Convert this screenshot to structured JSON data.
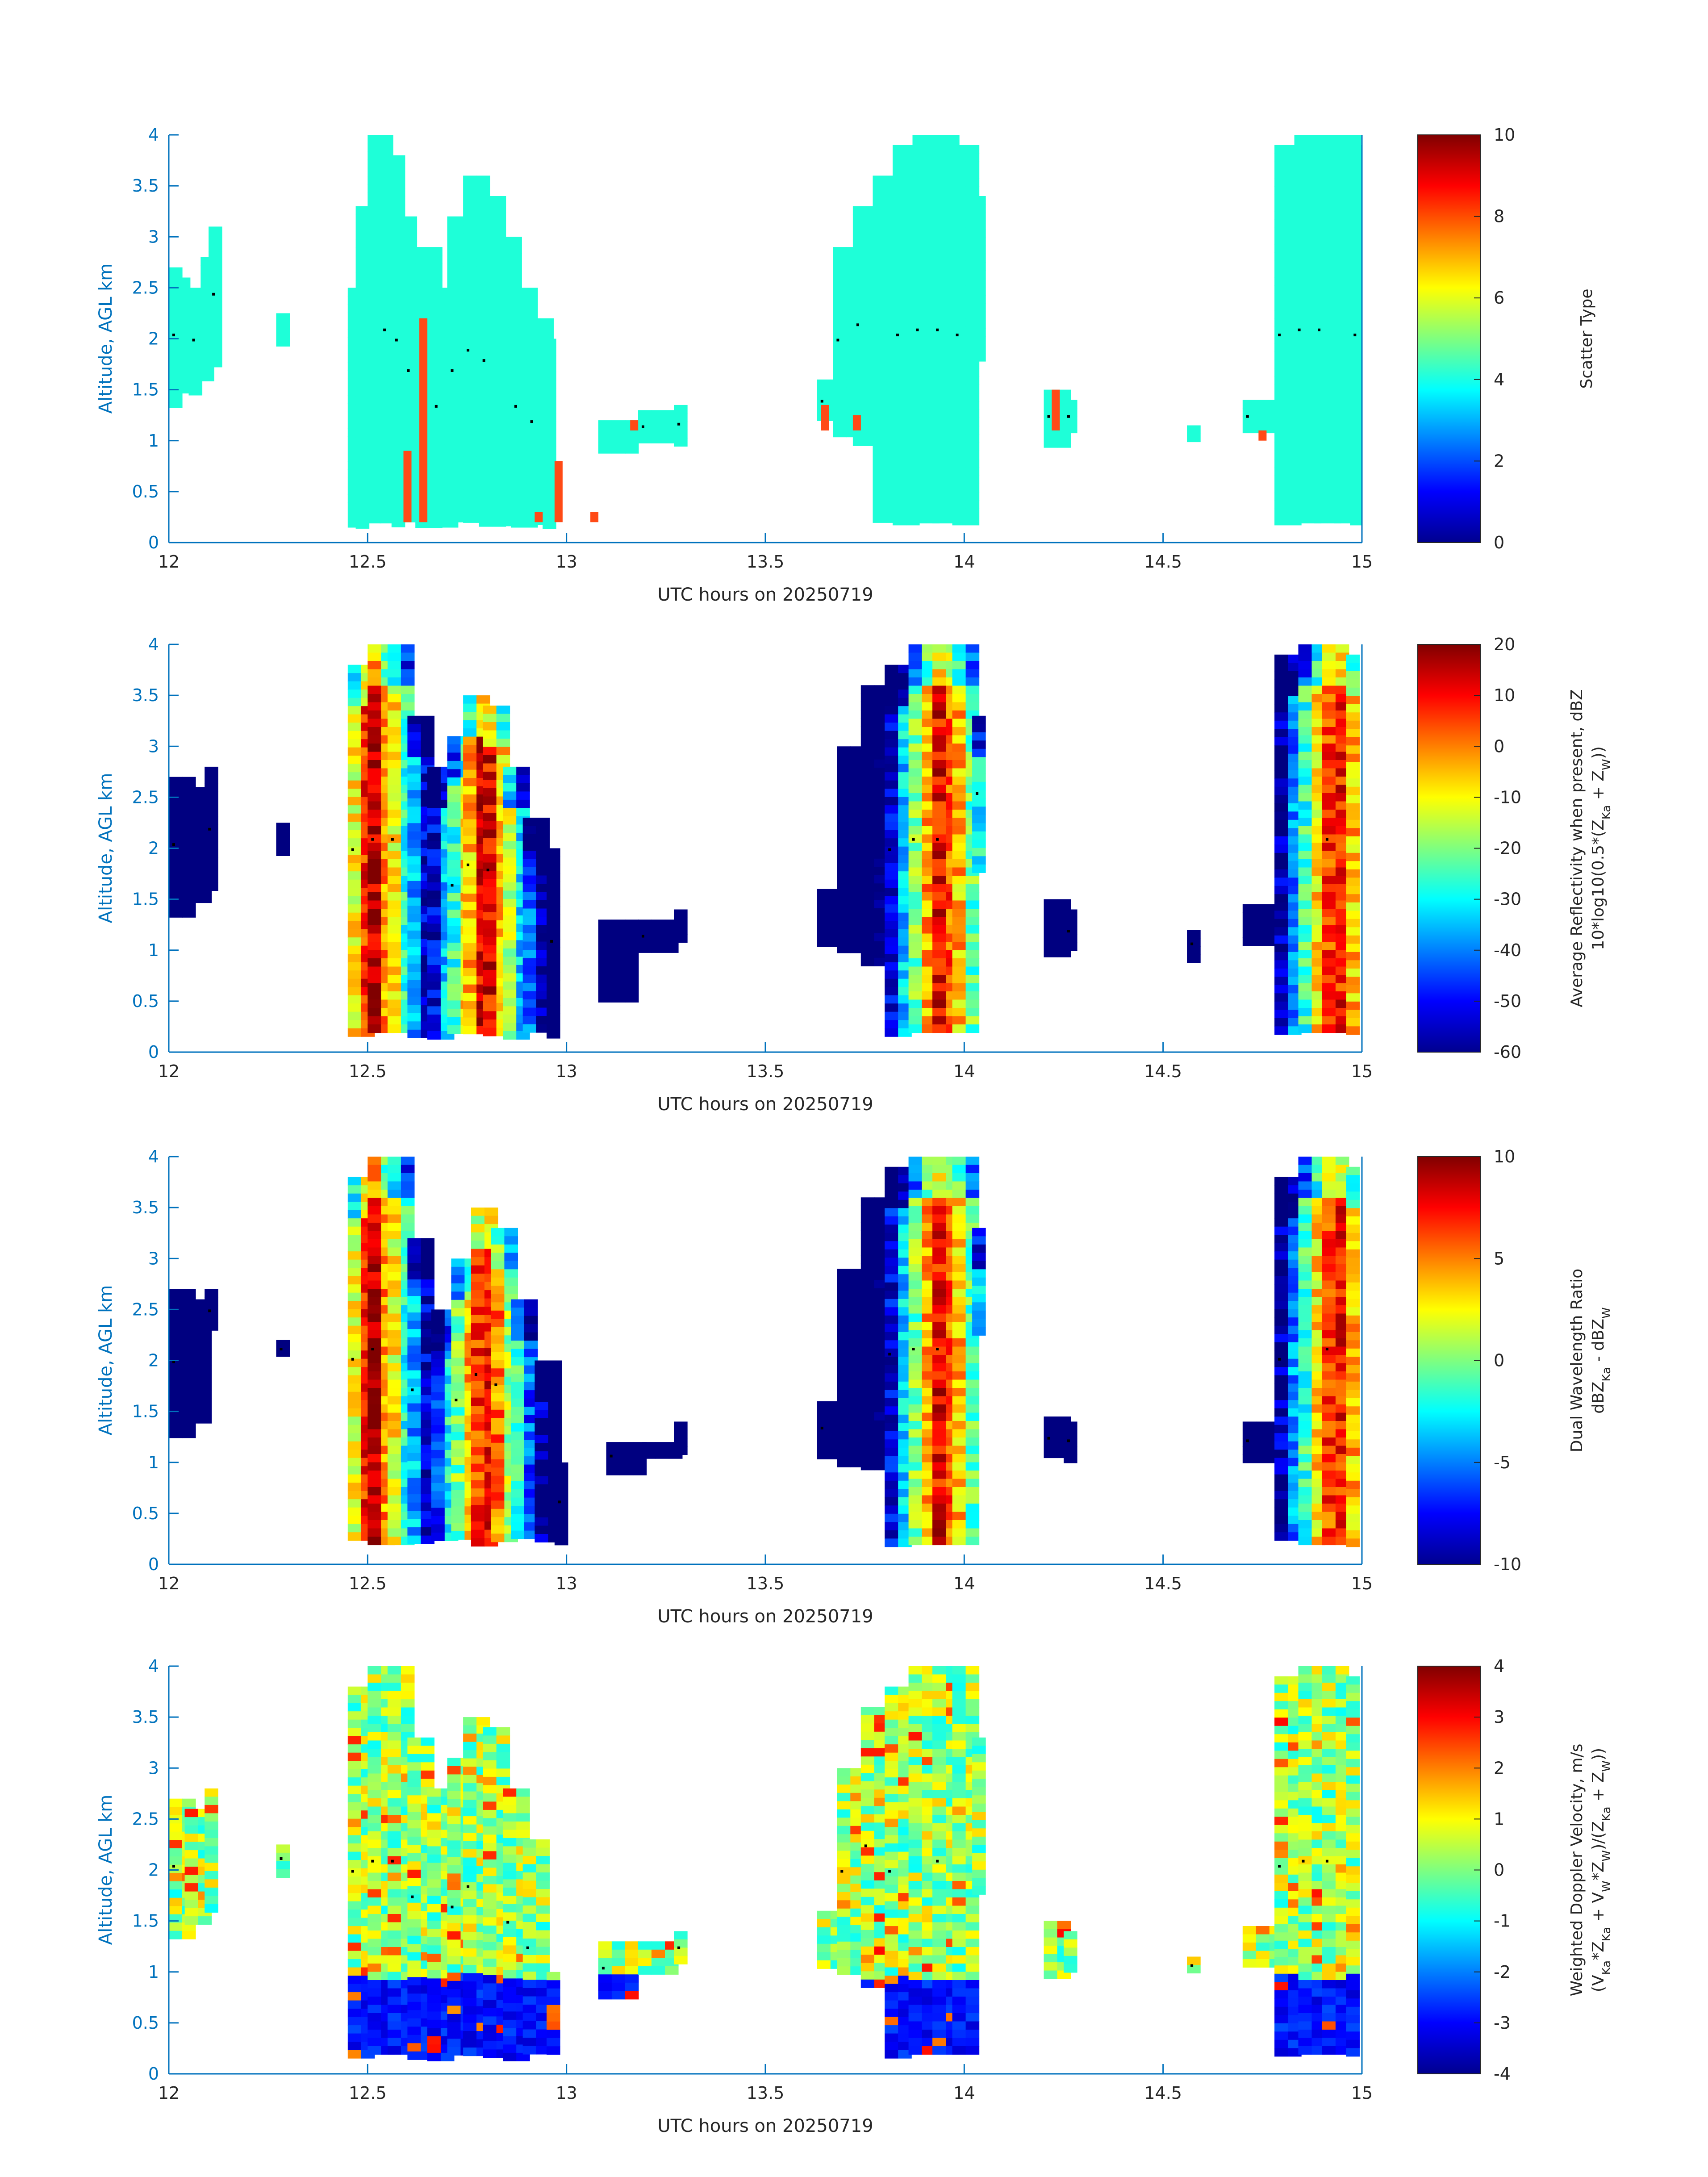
{
  "figure": {
    "colors": {
      "axis_blue": "#0072BD",
      "text": "#262626",
      "scatter_fill": "#1EFFD8",
      "scatter_accent": "#FF4A16",
      "dot": "#000000"
    }
  },
  "chart_data": [
    {
      "type": "heatmap",
      "xlabel": "UTC hours on 20250719",
      "ylabel": "Altitude, AGL km",
      "xlim": [
        12,
        15
      ],
      "ylim": [
        0,
        4
      ],
      "x_ticks": [
        "12",
        "12.5",
        "13",
        "13.5",
        "14",
        "14.5",
        "15"
      ],
      "y_ticks": [
        "0",
        "0.5",
        "1",
        "1.5",
        "2",
        "2.5",
        "3",
        "3.5",
        "4"
      ],
      "colorbar": {
        "title_lines": [
          "Scatter Type"
        ],
        "min": 0,
        "max": 10,
        "ticks": [
          "0",
          "2",
          "4",
          "6",
          "8",
          "10"
        ]
      },
      "mode": "scatter",
      "echoes": [
        {
          "t": 12.0,
          "b": 1.4,
          "h": 2.7
        },
        {
          "t": 12.02,
          "b": 1.5,
          "h": 2.6
        },
        {
          "t": 12.05,
          "b": 1.5,
          "h": 2.5
        },
        {
          "t": 12.08,
          "b": 1.6,
          "h": 2.8
        },
        {
          "t": 12.1,
          "b": 1.8,
          "h": 3.1
        },
        {
          "t": 12.27,
          "b": 2.0,
          "h": 2.25
        },
        {
          "t": 12.45,
          "b": 0.2,
          "h": 2.5
        },
        {
          "t": 12.47,
          "b": 0.2,
          "h": 3.3
        },
        {
          "t": 12.5,
          "b": 0.2,
          "h": 4.0
        },
        {
          "t": 12.53,
          "b": 0.2,
          "h": 4.0
        },
        {
          "t": 12.56,
          "b": 0.2,
          "h": 3.8
        },
        {
          "t": 12.59,
          "b": 0.2,
          "h": 3.2
        },
        {
          "t": 12.62,
          "b": 0.2,
          "h": 2.9
        },
        {
          "t": 12.66,
          "b": 0.2,
          "h": 2.5
        },
        {
          "t": 12.7,
          "b": 0.2,
          "h": 3.2
        },
        {
          "t": 12.74,
          "b": 0.2,
          "h": 3.6
        },
        {
          "t": 12.78,
          "b": 0.2,
          "h": 3.4
        },
        {
          "t": 12.82,
          "b": 0.2,
          "h": 3.0
        },
        {
          "t": 12.86,
          "b": 0.2,
          "h": 2.5
        },
        {
          "t": 12.9,
          "b": 0.2,
          "h": 2.2
        },
        {
          "t": 12.94,
          "b": 0.2,
          "h": 2.0
        },
        {
          "t": 13.08,
          "b": 0.95,
          "h": 1.2
        },
        {
          "t": 13.18,
          "b": 1.0,
          "h": 1.3
        },
        {
          "t": 13.27,
          "b": 1.0,
          "h": 1.35
        },
        {
          "t": 13.63,
          "b": 1.2,
          "h": 1.6
        },
        {
          "t": 13.67,
          "b": 1.1,
          "h": 2.9
        },
        {
          "t": 13.72,
          "b": 1.0,
          "h": 3.3
        },
        {
          "t": 13.77,
          "b": 0.2,
          "h": 3.6
        },
        {
          "t": 13.82,
          "b": 0.2,
          "h": 3.9
        },
        {
          "t": 13.87,
          "b": 0.2,
          "h": 4.0
        },
        {
          "t": 13.92,
          "b": 0.2,
          "h": 4.0
        },
        {
          "t": 13.97,
          "b": 0.2,
          "h": 3.9
        },
        {
          "t": 14.02,
          "b": 1.8,
          "h": 3.4
        },
        {
          "t": 14.2,
          "b": 1.0,
          "h": 1.5
        },
        {
          "t": 14.25,
          "b": 1.1,
          "h": 1.4
        },
        {
          "t": 14.56,
          "b": 1.05,
          "h": 1.15
        },
        {
          "t": 14.7,
          "b": 1.1,
          "h": 1.4
        },
        {
          "t": 14.78,
          "b": 0.2,
          "h": 3.9
        },
        {
          "t": 14.83,
          "b": 0.2,
          "h": 4.0
        },
        {
          "t": 14.88,
          "b": 0.2,
          "h": 4.0
        },
        {
          "t": 14.93,
          "b": 0.2,
          "h": 4.0
        },
        {
          "t": 14.97,
          "b": 0.2,
          "h": 3.9
        }
      ]
    },
    {
      "type": "heatmap",
      "xlabel": "UTC hours on 20250719",
      "ylabel": "Altitude, AGL km",
      "xlim": [
        12,
        15
      ],
      "ylim": [
        0,
        4
      ],
      "x_ticks": [
        "12",
        "12.5",
        "13",
        "13.5",
        "14",
        "14.5",
        "15"
      ],
      "y_ticks": [
        "0",
        "0.5",
        "1",
        "1.5",
        "2",
        "2.5",
        "3",
        "3.5",
        "4"
      ],
      "colorbar": {
        "title_lines": [
          "Average Reflectivity when present, dBZ",
          "10*log10(0.5*(Z",
          "Ka",
          " + Z",
          "W",
          "))"
        ],
        "min": -60,
        "max": 20,
        "ticks": [
          "-60",
          "-50",
          "-40",
          "-30",
          "-20",
          "-10",
          "0",
          "10",
          "20"
        ]
      },
      "mode": "value",
      "cores": [
        12.5,
        12.78,
        13.93,
        14.92
      ],
      "echoes": [
        {
          "t": 12.0,
          "b": 1.4,
          "h": 2.7
        },
        {
          "t": 12.04,
          "b": 1.5,
          "h": 2.6
        },
        {
          "t": 12.09,
          "b": 1.6,
          "h": 2.8
        },
        {
          "t": 12.27,
          "b": 2.0,
          "h": 2.25
        },
        {
          "t": 12.45,
          "b": 0.2,
          "h": 3.8
        },
        {
          "t": 12.5,
          "b": 0.2,
          "h": 4.0
        },
        {
          "t": 12.55,
          "b": 0.2,
          "h": 4.0
        },
        {
          "t": 12.6,
          "b": 0.2,
          "h": 3.3
        },
        {
          "t": 12.65,
          "b": 0.2,
          "h": 2.8
        },
        {
          "t": 12.7,
          "b": 0.2,
          "h": 3.1
        },
        {
          "t": 12.74,
          "b": 0.2,
          "h": 3.5
        },
        {
          "t": 12.79,
          "b": 0.2,
          "h": 3.4
        },
        {
          "t": 12.84,
          "b": 0.2,
          "h": 2.8
        },
        {
          "t": 12.89,
          "b": 0.2,
          "h": 2.3
        },
        {
          "t": 12.95,
          "b": 0.2,
          "h": 2.0
        },
        {
          "t": 13.08,
          "b": 0.5,
          "h": 1.3
        },
        {
          "t": 13.18,
          "b": 1.0,
          "h": 1.3
        },
        {
          "t": 13.27,
          "b": 1.1,
          "h": 1.4
        },
        {
          "t": 13.63,
          "b": 1.1,
          "h": 1.6
        },
        {
          "t": 13.68,
          "b": 1.0,
          "h": 3.0
        },
        {
          "t": 13.74,
          "b": 0.9,
          "h": 3.6
        },
        {
          "t": 13.8,
          "b": 0.2,
          "h": 3.8
        },
        {
          "t": 13.86,
          "b": 0.2,
          "h": 4.0
        },
        {
          "t": 13.92,
          "b": 0.2,
          "h": 4.0
        },
        {
          "t": 13.97,
          "b": 0.2,
          "h": 4.0
        },
        {
          "t": 14.02,
          "b": 1.8,
          "h": 3.3
        },
        {
          "t": 14.2,
          "b": 0.95,
          "h": 1.5
        },
        {
          "t": 14.25,
          "b": 1.0,
          "h": 1.4
        },
        {
          "t": 14.56,
          "b": 0.95,
          "h": 1.2
        },
        {
          "t": 14.7,
          "b": 1.05,
          "h": 1.45
        },
        {
          "t": 14.78,
          "b": 0.2,
          "h": 3.9
        },
        {
          "t": 14.84,
          "b": 0.2,
          "h": 4.0
        },
        {
          "t": 14.9,
          "b": 0.2,
          "h": 4.0
        },
        {
          "t": 14.96,
          "b": 0.2,
          "h": 3.9
        }
      ]
    },
    {
      "type": "heatmap",
      "xlabel": "UTC hours on 20250719",
      "ylabel": "Altitude, AGL km",
      "xlim": [
        12,
        15
      ],
      "ylim": [
        0,
        4
      ],
      "x_ticks": [
        "12",
        "12.5",
        "13",
        "13.5",
        "14",
        "14.5",
        "15"
      ],
      "y_ticks": [
        "0",
        "0.5",
        "1",
        "1.5",
        "2",
        "2.5",
        "3",
        "3.5",
        "4"
      ],
      "colorbar": {
        "title_lines": [
          "Dual Wavelength Ratio",
          "dBZ",
          "Ka",
          " - dBZ",
          "W",
          ""
        ],
        "min": -10,
        "max": 10,
        "ticks": [
          "-10",
          "-5",
          "0",
          "5",
          "10"
        ]
      },
      "mode": "value",
      "cores": [
        12.5,
        12.78,
        13.93,
        14.92
      ],
      "echoes": [
        {
          "t": 12.0,
          "b": 1.3,
          "h": 2.7
        },
        {
          "t": 12.04,
          "b": 1.4,
          "h": 2.6
        },
        {
          "t": 12.09,
          "b": 2.3,
          "h": 2.7
        },
        {
          "t": 12.27,
          "b": 2.05,
          "h": 2.2
        },
        {
          "t": 12.45,
          "b": 0.25,
          "h": 3.8
        },
        {
          "t": 12.5,
          "b": 0.25,
          "h": 4.0
        },
        {
          "t": 12.55,
          "b": 0.25,
          "h": 4.0
        },
        {
          "t": 12.6,
          "b": 0.25,
          "h": 3.2
        },
        {
          "t": 12.66,
          "b": 0.25,
          "h": 2.5
        },
        {
          "t": 12.71,
          "b": 0.25,
          "h": 3.0
        },
        {
          "t": 12.76,
          "b": 0.25,
          "h": 3.5
        },
        {
          "t": 12.81,
          "b": 0.25,
          "h": 3.3
        },
        {
          "t": 12.86,
          "b": 0.25,
          "h": 2.6
        },
        {
          "t": 12.92,
          "b": 0.25,
          "h": 2.0
        },
        {
          "t": 12.97,
          "b": 0.25,
          "h": 1.0
        },
        {
          "t": 13.1,
          "b": 0.95,
          "h": 1.2
        },
        {
          "t": 13.19,
          "b": 1.05,
          "h": 1.2
        },
        {
          "t": 13.27,
          "b": 1.1,
          "h": 1.4
        },
        {
          "t": 13.63,
          "b": 1.1,
          "h": 1.6
        },
        {
          "t": 13.68,
          "b": 1.0,
          "h": 2.9
        },
        {
          "t": 13.74,
          "b": 1.0,
          "h": 3.6
        },
        {
          "t": 13.8,
          "b": 0.25,
          "h": 3.9
        },
        {
          "t": 13.86,
          "b": 0.25,
          "h": 4.0
        },
        {
          "t": 13.92,
          "b": 0.25,
          "h": 4.0
        },
        {
          "t": 13.97,
          "b": 0.25,
          "h": 4.0
        },
        {
          "t": 14.02,
          "b": 2.3,
          "h": 3.3
        },
        {
          "t": 14.2,
          "b": 1.05,
          "h": 1.45
        },
        {
          "t": 14.25,
          "b": 1.05,
          "h": 1.4
        },
        {
          "t": 14.7,
          "b": 1.05,
          "h": 1.4
        },
        {
          "t": 14.78,
          "b": 0.25,
          "h": 3.8
        },
        {
          "t": 14.84,
          "b": 0.25,
          "h": 4.0
        },
        {
          "t": 14.9,
          "b": 0.25,
          "h": 4.0
        },
        {
          "t": 14.96,
          "b": 0.25,
          "h": 3.9
        }
      ]
    },
    {
      "type": "heatmap",
      "xlabel": "UTC hours on 20250719",
      "ylabel": "Altitude, AGL km",
      "xlim": [
        12,
        15
      ],
      "ylim": [
        0,
        4
      ],
      "x_ticks": [
        "12",
        "12.5",
        "13",
        "13.5",
        "14",
        "14.5",
        "15"
      ],
      "y_ticks": [
        "0",
        "0.5",
        "1",
        "1.5",
        "2",
        "2.5",
        "3",
        "3.5",
        "4"
      ],
      "colorbar": {
        "title_lines": [
          "Weighted Doppler Velocity, m/s",
          "(V",
          "Ka",
          "*Z",
          "Ka",
          " + V",
          "W",
          "*Z",
          "W",
          ")/(Z",
          "Ka",
          " + Z",
          "W",
          "))"
        ],
        "min": -4,
        "max": 4,
        "ticks": [
          "-4",
          "-3",
          "-2",
          "-1",
          "0",
          "1",
          "2",
          "3",
          "4"
        ]
      },
      "mode": "velocity",
      "echoes": [
        {
          "t": 12.0,
          "b": 1.4,
          "h": 2.7
        },
        {
          "t": 12.04,
          "b": 1.5,
          "h": 2.6
        },
        {
          "t": 12.09,
          "b": 1.6,
          "h": 2.8
        },
        {
          "t": 12.27,
          "b": 2.0,
          "h": 2.25
        },
        {
          "t": 12.45,
          "b": 0.2,
          "h": 3.8
        },
        {
          "t": 12.5,
          "b": 0.2,
          "h": 4.0
        },
        {
          "t": 12.55,
          "b": 0.2,
          "h": 4.0
        },
        {
          "t": 12.6,
          "b": 0.2,
          "h": 3.3
        },
        {
          "t": 12.65,
          "b": 0.2,
          "h": 2.8
        },
        {
          "t": 12.7,
          "b": 0.2,
          "h": 3.1
        },
        {
          "t": 12.74,
          "b": 0.2,
          "h": 3.5
        },
        {
          "t": 12.79,
          "b": 0.2,
          "h": 3.4
        },
        {
          "t": 12.84,
          "b": 0.2,
          "h": 2.8
        },
        {
          "t": 12.89,
          "b": 0.2,
          "h": 2.3
        },
        {
          "t": 12.95,
          "b": 0.2,
          "h": 1.0
        },
        {
          "t": 13.08,
          "b": 0.8,
          "h": 1.3
        },
        {
          "t": 13.18,
          "b": 1.0,
          "h": 1.3
        },
        {
          "t": 13.27,
          "b": 1.1,
          "h": 1.4
        },
        {
          "t": 13.63,
          "b": 1.1,
          "h": 1.6
        },
        {
          "t": 13.68,
          "b": 1.0,
          "h": 3.0
        },
        {
          "t": 13.74,
          "b": 0.9,
          "h": 3.6
        },
        {
          "t": 13.8,
          "b": 0.2,
          "h": 3.8
        },
        {
          "t": 13.86,
          "b": 0.2,
          "h": 4.0
        },
        {
          "t": 13.92,
          "b": 0.2,
          "h": 4.0
        },
        {
          "t": 13.97,
          "b": 0.2,
          "h": 4.0
        },
        {
          "t": 14.02,
          "b": 1.8,
          "h": 3.3
        },
        {
          "t": 14.2,
          "b": 1.0,
          "h": 1.5
        },
        {
          "t": 14.25,
          "b": 1.05,
          "h": 1.4
        },
        {
          "t": 14.56,
          "b": 1.0,
          "h": 1.15
        },
        {
          "t": 14.7,
          "b": 1.05,
          "h": 1.45
        },
        {
          "t": 14.78,
          "b": 0.2,
          "h": 3.9
        },
        {
          "t": 14.84,
          "b": 0.2,
          "h": 4.0
        },
        {
          "t": 14.9,
          "b": 0.2,
          "h": 4.0
        },
        {
          "t": 14.96,
          "b": 0.2,
          "h": 3.9
        }
      ]
    }
  ]
}
